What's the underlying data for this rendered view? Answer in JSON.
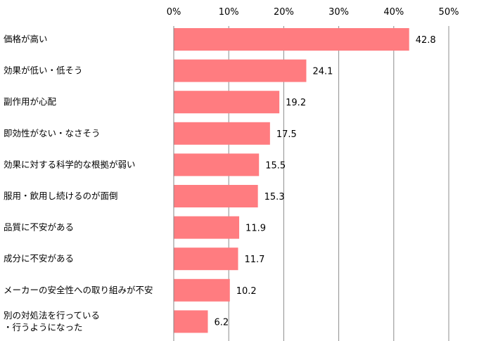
{
  "chart_data": {
    "type": "bar",
    "orientation": "horizontal",
    "title": "",
    "xlabel": "",
    "ylabel": "",
    "xlim": [
      0,
      50
    ],
    "ticks": [
      "0%",
      "10%",
      "20%",
      "30%",
      "40%",
      "50%"
    ],
    "tick_values": [
      0,
      10,
      20,
      30,
      40,
      50
    ],
    "grid": true,
    "legend": "none",
    "bar_color": "#FF7C80",
    "categories": [
      [
        "価格が高い"
      ],
      [
        "効果が低い・低そう"
      ],
      [
        "副作用が心配"
      ],
      [
        "即効性がない・なさそう"
      ],
      [
        "効果に対する科学的な根拠が弱い"
      ],
      [
        "服用・飲用し続けるのが面倒"
      ],
      [
        "品質に不安がある"
      ],
      [
        "成分に不安がある"
      ],
      [
        "メーカーの安全性への取り組みが不安"
      ],
      [
        "別の対処法を行っている",
        "・行うようになった"
      ]
    ],
    "values": [
      42.8,
      24.1,
      19.2,
      17.5,
      15.5,
      15.3,
      11.9,
      11.7,
      10.2,
      6.2
    ],
    "value_labels": [
      "42.8",
      "24.1",
      "19.2",
      "17.5",
      "15.5",
      "15.3",
      "11.9",
      "11.7",
      "10.2",
      "6.2"
    ]
  }
}
